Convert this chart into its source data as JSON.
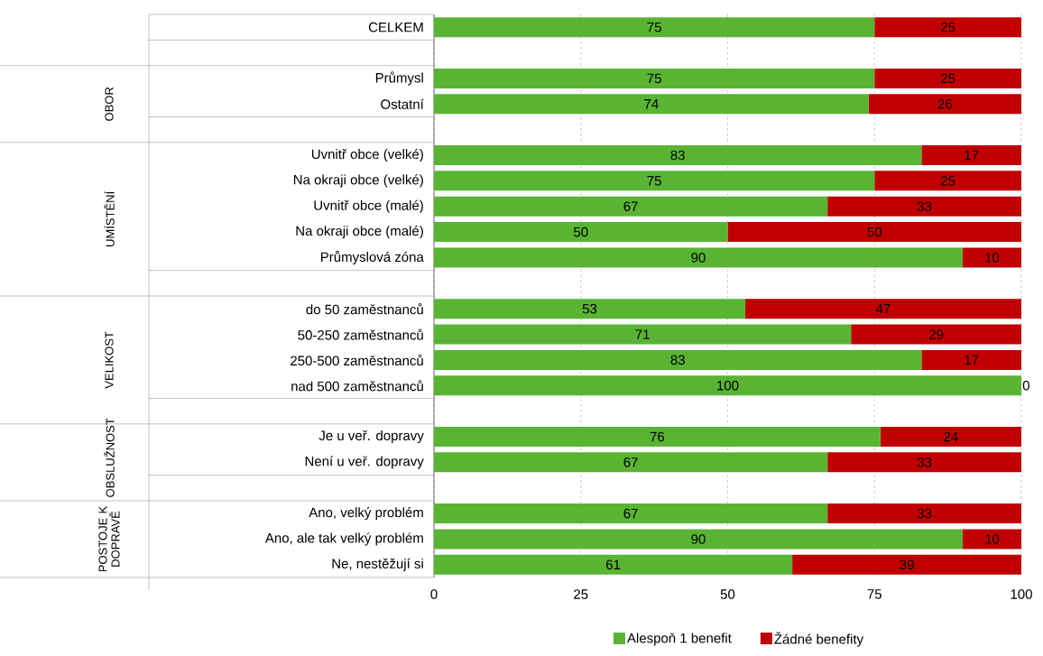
{
  "chart_data": {
    "type": "bar",
    "orientation": "horizontal",
    "stacked": true,
    "categories": [
      "CELKEM",
      null,
      "Průmysl",
      "Ostatní",
      null,
      "Uvnitř obce (velké)",
      "Na okraji obce (velké)",
      "Uvnitř obce (malé)",
      "Na okraji obce (malé)",
      "Průmyslová zóna",
      null,
      "do 50 zaměstnanců",
      "50-250 zaměstnanců",
      "250-500 zaměstnanců",
      "nad 500 zaměstnanců",
      null,
      "Je u veř. dopravy",
      "Není u veř. dopravy",
      null,
      "Ano, velký problém",
      "Ano, ale tak velký problém",
      "Ne, nestěžují si"
    ],
    "series": [
      {
        "name": "Alespoň 1 benefit",
        "color": "#5ab434",
        "values": [
          75,
          null,
          75,
          74,
          null,
          83,
          75,
          67,
          50,
          90,
          null,
          53,
          71,
          83,
          100,
          null,
          76,
          67,
          null,
          67,
          90,
          61
        ]
      },
      {
        "name": "Žádné benefity",
        "color": "#c00000",
        "values": [
          25,
          null,
          25,
          26,
          null,
          17,
          25,
          33,
          50,
          10,
          null,
          47,
          29,
          17,
          0,
          null,
          24,
          33,
          null,
          33,
          10,
          39
        ]
      }
    ],
    "annotations": [
      "OBOR",
      "UMÍSTĚNÍ",
      "VELIKOST",
      "OBSLUŽNOST",
      "POSTOJE K DOPRAVĚ"
    ],
    "xlim": [
      0,
      100
    ],
    "xticks": [
      0,
      25,
      50,
      75,
      100
    ],
    "grid": "x",
    "legend": "bottom",
    "data_labels": true
  }
}
